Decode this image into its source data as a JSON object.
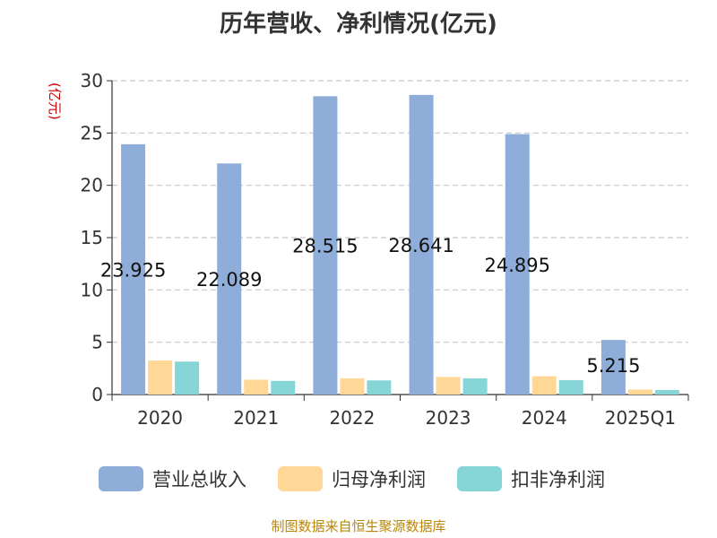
{
  "title": "历年营收、净利情况(亿元)",
  "unit_label": "(亿元)",
  "source": "制图数据来自恒生聚源数据库",
  "chart_data": {
    "type": "bar",
    "title": "历年营收、净利情况(亿元)",
    "ylabel": "(亿元)",
    "xlabel": "",
    "categories": [
      "2020",
      "2021",
      "2022",
      "2023",
      "2024",
      "2025Q1"
    ],
    "ylim": [
      0,
      30
    ],
    "yticks": [
      0,
      5,
      10,
      15,
      20,
      25,
      30
    ],
    "grid": true,
    "legend_position": "bottom",
    "series": [
      {
        "name": "营业总收入",
        "color": "#8eadd9",
        "values": [
          23.925,
          22.089,
          28.515,
          28.641,
          24.895,
          5.215
        ],
        "data_labels": [
          "23.925",
          "22.089",
          "28.515",
          "28.641",
          "24.895",
          "5.215"
        ]
      },
      {
        "name": "归母净利润",
        "color": "#ffd898",
        "values": [
          3.25,
          1.42,
          1.55,
          1.68,
          1.75,
          0.48
        ]
      },
      {
        "name": "扣非净利润",
        "color": "#86d5d7",
        "values": [
          3.15,
          1.3,
          1.35,
          1.55,
          1.38,
          0.43
        ]
      }
    ]
  }
}
